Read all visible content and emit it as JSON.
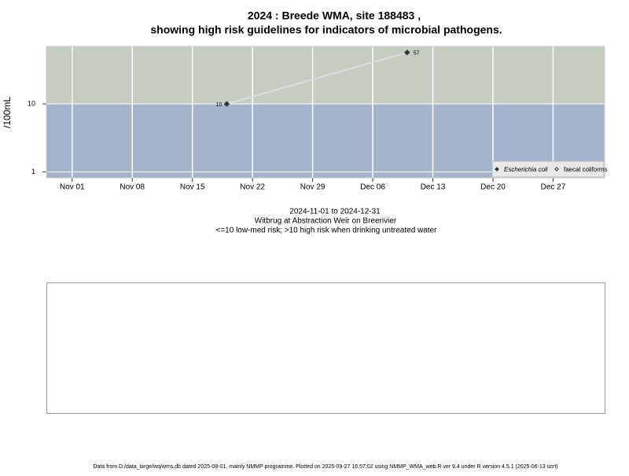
{
  "chart_data": {
    "type": "line",
    "title": [
      "2024 : Breede WMA, site 188483 ,",
      "showing high risk guidelines for indicators of microbial pathogens."
    ],
    "subtitle": [
      "2024-11-01 to 2024-12-31",
      "Witbrug at Abstraction Weir on Breerivier",
      "<=10 low-med risk; >10 high risk when drinking untreated water"
    ],
    "y_label": "/100mL",
    "x": [
      "2024-11-19",
      "2024-12-10"
    ],
    "series": [
      {
        "name": "Escherichia coli",
        "color": "#333333",
        "line_color": "#dddddd",
        "marker": "filled",
        "values": [
          10,
          57
        ]
      },
      {
        "name": "faecal coliforms",
        "color": "#333333",
        "marker": "open",
        "values": [
          null,
          null
        ]
      }
    ],
    "log_y": true,
    "ylim": [
      0.82,
      70
    ],
    "yticks": [
      1,
      10
    ],
    "xlim": [
      "2024-10-29",
      "2025-01-02"
    ],
    "xticks": [
      {
        "value": "2024-11-01",
        "label": "Nov 01"
      },
      {
        "value": "2024-11-08",
        "label": "Nov 08"
      },
      {
        "value": "2024-11-15",
        "label": "Nov 15"
      },
      {
        "value": "2024-11-22",
        "label": "Nov 22"
      },
      {
        "value": "2024-11-29",
        "label": "Nov 29"
      },
      {
        "value": "2024-12-06",
        "label": "Dec 06"
      },
      {
        "value": "2024-12-13",
        "label": "Dec 13"
      },
      {
        "value": "2024-12-20",
        "label": "Dec 20"
      },
      {
        "value": "2024-12-27",
        "label": "Dec 27"
      }
    ],
    "threshold": 10,
    "above_color": "#c5cdc2",
    "below_color": "#a3b3cc",
    "grid": true,
    "legend": "bottom-right",
    "footer": "Data from D:/data_large/wq/wms.db dated 2025-08-01, mainly NMMP programme. Plotted on 2025-09-27 16:57:02 using NMMP_WMA_web.R ver 9.4 under R version 4.5.1 (2025-06-13 ucrt)"
  }
}
